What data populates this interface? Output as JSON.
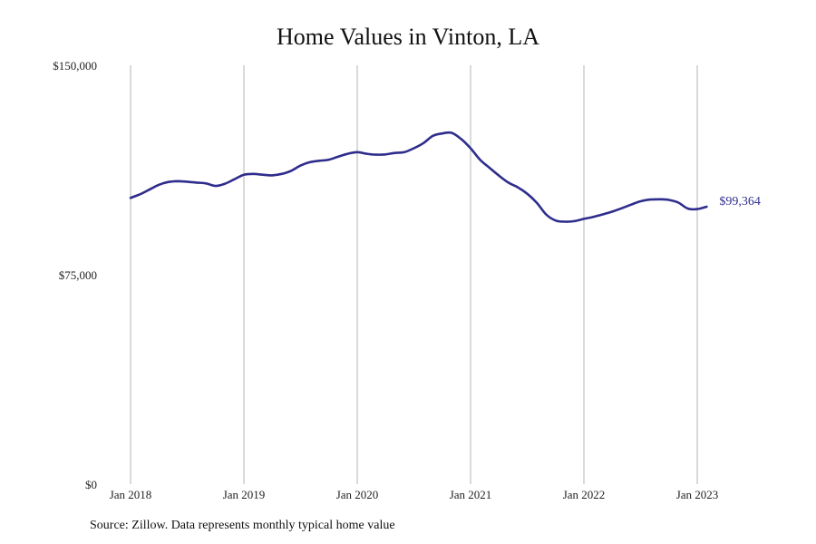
{
  "chart_data": {
    "type": "line",
    "title": "Home Values in Vinton, LA",
    "xlabel": "",
    "ylabel": "",
    "ylim": [
      0,
      150000
    ],
    "y_ticks": [
      {
        "value": 0,
        "label": "$0"
      },
      {
        "value": 75000,
        "label": "$75,000"
      },
      {
        "value": 150000,
        "label": "$150,000"
      }
    ],
    "x_ticks": [
      {
        "value": "2018-01",
        "label": "Jan 2018"
      },
      {
        "value": "2019-01",
        "label": "Jan 2019"
      },
      {
        "value": "2020-01",
        "label": "Jan 2020"
      },
      {
        "value": "2021-01",
        "label": "Jan 2021"
      },
      {
        "value": "2022-01",
        "label": "Jan 2022"
      },
      {
        "value": "2023-01",
        "label": "Jan 2023"
      }
    ],
    "grid": "vertical",
    "line_color": "#2e2d8c",
    "end_label": "$99,364",
    "series": [
      {
        "x": [
          "2018-01",
          "2018-02",
          "2018-03",
          "2018-04",
          "2018-05",
          "2018-06",
          "2018-07",
          "2018-08",
          "2018-09",
          "2018-10",
          "2018-11",
          "2018-12",
          "2019-01",
          "2019-02",
          "2019-03",
          "2019-04",
          "2019-05",
          "2019-06",
          "2019-07",
          "2019-08",
          "2019-09",
          "2019-10",
          "2019-11",
          "2019-12",
          "2020-01",
          "2020-02",
          "2020-03",
          "2020-04",
          "2020-05",
          "2020-06",
          "2020-07",
          "2020-08",
          "2020-09",
          "2020-10",
          "2020-11",
          "2020-12",
          "2021-01",
          "2021-02",
          "2021-03",
          "2021-04",
          "2021-05",
          "2021-06",
          "2021-07",
          "2021-08",
          "2021-09",
          "2021-10",
          "2021-11",
          "2021-12",
          "2022-01",
          "2022-02",
          "2022-03",
          "2022-04",
          "2022-05",
          "2022-06",
          "2022-07",
          "2022-08",
          "2022-09",
          "2022-10",
          "2022-11",
          "2022-12",
          "2023-01",
          "2023-02"
        ],
        "values": [
          102500,
          103800,
          105500,
          107200,
          108200,
          108500,
          108300,
          108000,
          107700,
          106800,
          107600,
          109200,
          110800,
          111100,
          110800,
          110600,
          111100,
          112200,
          114100,
          115300,
          115800,
          116200,
          117300,
          118300,
          118900,
          118300,
          118000,
          118100,
          118600,
          118900,
          120300,
          122100,
          124700,
          125600,
          125800,
          123600,
          120300,
          116200,
          113300,
          110500,
          108000,
          106300,
          104000,
          100800,
          96600,
          94400,
          94000,
          94200,
          95000,
          95700,
          96600,
          97600,
          98800,
          100100,
          101300,
          101900,
          102000,
          101800,
          100800,
          98700,
          98500,
          99364
        ]
      }
    ]
  },
  "footer": {
    "source": "Source: Zillow. Data represents monthly typical home value"
  }
}
